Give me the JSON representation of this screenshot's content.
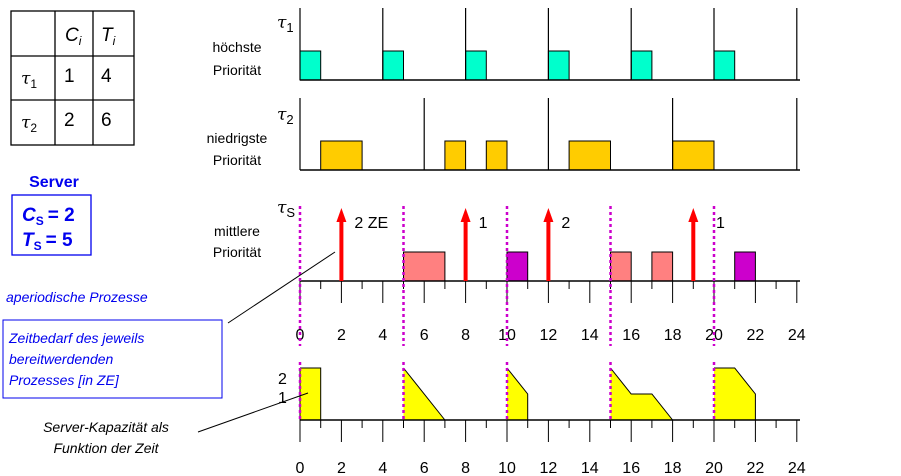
{
  "table": {
    "headers": [
      "",
      "C_i",
      "T_i"
    ],
    "rows": [
      {
        "task": "τ1",
        "C": "1",
        "T": "4"
      },
      {
        "task": "τ2",
        "C": "2",
        "T": "6"
      }
    ]
  },
  "server": {
    "title": "Server",
    "cs_label": "C",
    "cs_sub": "S",
    "cs_value": "= 2",
    "ts_label": "T",
    "ts_sub": "S",
    "ts_value": "= 5"
  },
  "tasks": [
    {
      "symbol": "τ",
      "sub": "1",
      "priority_line1": "höchste",
      "priority_line2": "Priorität",
      "color": "#00FFCC",
      "period_marks": [
        0,
        4,
        8,
        12,
        16,
        20,
        24
      ],
      "blocks": [
        [
          0,
          1
        ],
        [
          4,
          5
        ],
        [
          8,
          9
        ],
        [
          12,
          13
        ],
        [
          16,
          17
        ],
        [
          20,
          21
        ]
      ]
    },
    {
      "symbol": "τ",
      "sub": "2",
      "priority_line1": "niedrigste",
      "priority_line2": "Priorität",
      "color": "#FFCC00",
      "period_marks": [
        0,
        6,
        12,
        18,
        24
      ],
      "blocks": [
        [
          1,
          3
        ],
        [
          7,
          8
        ],
        [
          9,
          10
        ],
        [
          13,
          15
        ],
        [
          18,
          20
        ]
      ]
    },
    {
      "symbol": "τ",
      "sub": "S",
      "priority_line1": "mittlere",
      "priority_line2": "Priorität"
    }
  ],
  "server_timeline": {
    "server_period_marks": [
      0,
      5,
      10,
      15,
      20
    ],
    "marker_color": "#CC00CC",
    "arrival_color": "#FF0000",
    "arrivals": [
      {
        "t": 2,
        "label": "2 ZE"
      },
      {
        "t": 8,
        "label": "1"
      },
      {
        "t": 12,
        "label": "2"
      },
      {
        "t": 19,
        "label": "1"
      }
    ],
    "server_blocks_color": "#FF8080",
    "server_blocks": [
      [
        5,
        7
      ],
      [
        15,
        16
      ],
      [
        17,
        18
      ]
    ],
    "aperiodic_blocks_color": "#CC00CC",
    "aperiodic_blocks": [
      [
        10,
        11
      ],
      [
        21,
        22
      ]
    ],
    "axis_labels": [
      "0",
      "2",
      "4",
      "6",
      "8",
      "10",
      "12",
      "14",
      "16",
      "18",
      "20",
      "22",
      "24"
    ]
  },
  "capacity": {
    "y_labels": [
      "2",
      "1"
    ],
    "color": "#FFFF00",
    "segments": [
      [
        [
          0,
          2
        ],
        [
          1,
          2
        ],
        [
          1,
          0
        ]
      ],
      [
        [
          5,
          2
        ],
        [
          7,
          0
        ]
      ],
      [
        [
          10,
          2
        ],
        [
          11,
          1
        ],
        [
          11,
          0
        ]
      ],
      [
        [
          15,
          2
        ],
        [
          16,
          1
        ],
        [
          17,
          1
        ],
        [
          18,
          0
        ]
      ],
      [
        [
          20,
          2
        ],
        [
          21,
          2
        ],
        [
          22,
          1
        ],
        [
          22,
          0
        ]
      ]
    ],
    "axis_labels": [
      "0",
      "2",
      "4",
      "6",
      "8",
      "10",
      "12",
      "14",
      "16",
      "18",
      "20",
      "22",
      "24"
    ]
  },
  "annotations": {
    "aperiodic": "aperiodische Prozesse",
    "demand_line1": "Zeitbedarf des jeweils",
    "demand_line2": "bereitwerdenden",
    "demand_line3": "Prozesses [in ZE]",
    "capacity_line1": "Server-Kapazität als",
    "capacity_line2": "Funktion der Zeit"
  }
}
